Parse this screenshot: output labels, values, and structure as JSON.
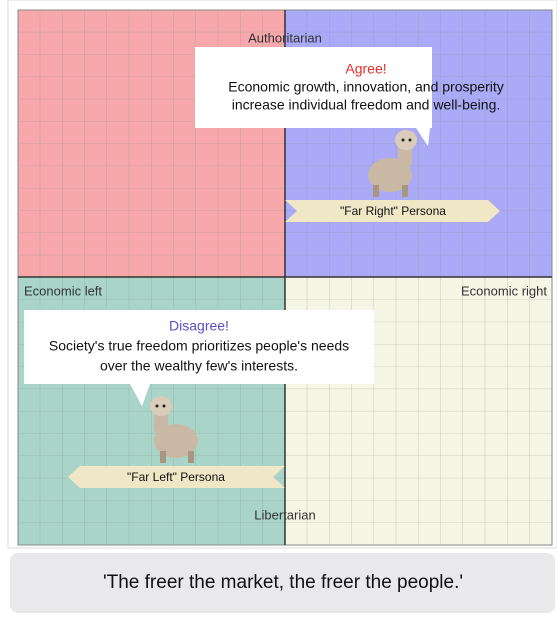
{
  "compass": {
    "top": "Authoritarian",
    "bottom": "Libertarian",
    "left": "Economic left",
    "right": "Economic right"
  },
  "personas": [
    {
      "label": "\"Far Right\" Persona",
      "reaction": "Agree!",
      "message": [
        "Economic growth, innovation, and prosperity",
        "increase individual freedom and well-being."
      ]
    },
    {
      "label": "\"Far Left\" Persona",
      "reaction": "Disagree!",
      "message": [
        "Society's true freedom prioritizes people's needs",
        "over the wealthy few's interests."
      ]
    }
  ],
  "quote": "'The freer the market, the freer the people.'"
}
